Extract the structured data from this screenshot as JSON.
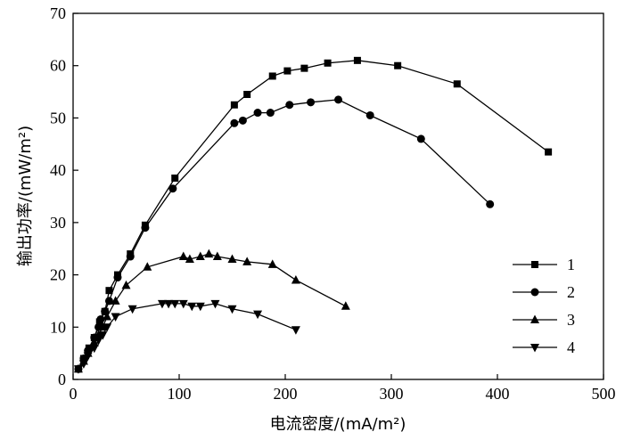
{
  "chart_data": {
    "type": "line",
    "xlabel": "电流密度/(mA/m²)",
    "ylabel": "输出功率/(mW/m²)",
    "xlim": [
      0,
      500
    ],
    "ylim": [
      0,
      70
    ],
    "xticks": [
      0,
      100,
      200,
      300,
      400,
      500
    ],
    "yticks": [
      0,
      10,
      20,
      30,
      40,
      50,
      60,
      70
    ],
    "grid": false,
    "legend_position": "right",
    "series": [
      {
        "name": "1",
        "marker": "square",
        "points": [
          [
            5,
            2
          ],
          [
            10,
            4
          ],
          [
            15,
            6
          ],
          [
            20,
            8
          ],
          [
            25,
            11
          ],
          [
            30,
            13
          ],
          [
            34,
            17
          ],
          [
            42,
            20
          ],
          [
            54,
            24
          ],
          [
            68,
            29.5
          ],
          [
            96,
            38.5
          ],
          [
            152,
            52.5
          ],
          [
            164,
            54.5
          ],
          [
            188,
            58
          ],
          [
            202,
            59
          ],
          [
            218,
            59.5
          ],
          [
            240,
            60.5
          ],
          [
            268,
            61
          ],
          [
            306,
            60
          ],
          [
            362,
            56.5
          ],
          [
            448,
            43.5
          ]
        ]
      },
      {
        "name": "2",
        "marker": "circle",
        "points": [
          [
            5,
            2
          ],
          [
            10,
            4
          ],
          [
            14,
            5.5
          ],
          [
            20,
            8
          ],
          [
            24,
            10
          ],
          [
            26,
            11.5
          ],
          [
            30,
            13
          ],
          [
            34,
            15
          ],
          [
            42,
            19.5
          ],
          [
            54,
            23.5
          ],
          [
            68,
            29
          ],
          [
            94,
            36.5
          ],
          [
            152,
            49
          ],
          [
            160,
            49.5
          ],
          [
            174,
            51
          ],
          [
            186,
            51
          ],
          [
            204,
            52.5
          ],
          [
            224,
            53
          ],
          [
            250,
            53.5
          ],
          [
            280,
            50.5
          ],
          [
            328,
            46
          ],
          [
            393,
            33.5
          ]
        ]
      },
      {
        "name": "3",
        "marker": "triangle-up",
        "points": [
          [
            5,
            2
          ],
          [
            10,
            3.5
          ],
          [
            14,
            5
          ],
          [
            20,
            7
          ],
          [
            24,
            8.5
          ],
          [
            28,
            10
          ],
          [
            32,
            12
          ],
          [
            40,
            15
          ],
          [
            50,
            18
          ],
          [
            70,
            21.5
          ],
          [
            104,
            23.5
          ],
          [
            110,
            23
          ],
          [
            120,
            23.5
          ],
          [
            128,
            24
          ],
          [
            136,
            23.5
          ],
          [
            150,
            23
          ],
          [
            164,
            22.5
          ],
          [
            188,
            22
          ],
          [
            210,
            19
          ],
          [
            257,
            14
          ]
        ]
      },
      {
        "name": "4",
        "marker": "triangle-down",
        "points": [
          [
            5,
            2
          ],
          [
            10,
            3
          ],
          [
            14,
            4.5
          ],
          [
            20,
            6
          ],
          [
            24,
            7.5
          ],
          [
            28,
            8.5
          ],
          [
            32,
            10
          ],
          [
            40,
            12
          ],
          [
            56,
            13.5
          ],
          [
            84,
            14.5
          ],
          [
            90,
            14.5
          ],
          [
            96,
            14.5
          ],
          [
            104,
            14.5
          ],
          [
            112,
            14
          ],
          [
            120,
            14
          ],
          [
            134,
            14.5
          ],
          [
            150,
            13.5
          ],
          [
            174,
            12.5
          ],
          [
            210,
            9.5
          ]
        ]
      }
    ]
  }
}
